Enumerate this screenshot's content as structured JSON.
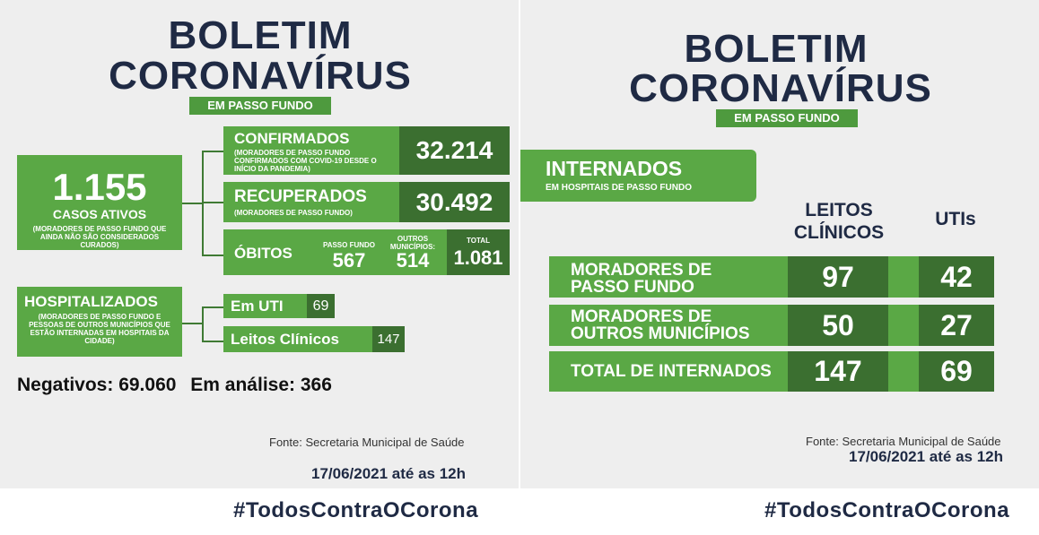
{
  "left": {
    "title_line1": "BOLETIM",
    "title_line2": "CORONAVÍRUS",
    "subtitle": "EM PASSO FUNDO",
    "casos_ativos": {
      "value": "1.155",
      "label": "CASOS ATIVOS",
      "note": "(MORADORES DE PASSO FUNDO QUE AINDA NÃO SÃO CONSIDERADOS CURADOS)"
    },
    "confirmados": {
      "label": "CONFIRMADOS",
      "note": "(MORADORES DE PASSO FUNDO CONFIRMADOS COM COVID-19 DESDE O INÍCIO DA PANDEMIA)",
      "value": "32.214"
    },
    "recuperados": {
      "label": "RECUPERADOS",
      "note": "(MORADORES DE PASSO FUNDO)",
      "value": "30.492"
    },
    "obitos": {
      "label": "ÓBITOS",
      "pf_label": "PASSO FUNDO",
      "pf_value": "567",
      "outros_label": "OUTROS MUNICÍPIOS:",
      "outros_value": "514",
      "total_label": "TOTAL",
      "total_value": "1.081"
    },
    "hospitalizados": {
      "label": "HOSPITALIZADOS",
      "note": "(MORADORES DE PASSO FUNDO E PESSOAS DE OUTROS MUNICÍPIOS QUE ESTÃO INTERNADAS EM HOSPITAIS DA CIDADE)"
    },
    "em_uti": {
      "label": "Em UTI",
      "value": "69"
    },
    "leitos_clinicos": {
      "label": "Leitos Clínicos",
      "value": "147"
    },
    "negativos_label": "Negativos:",
    "negativos_value": "69.060",
    "analise_label": "Em análise:",
    "analise_value": "366",
    "fonte": "Fonte: Secretaria Municipal de Saúde",
    "date": "17/06/2021 até as 12h",
    "hashtag": "#TodosContraOCorona"
  },
  "right": {
    "title_line1": "BOLETIM",
    "title_line2": "CORONAVÍRUS",
    "subtitle": "EM PASSO FUNDO",
    "internados_label": "INTERNADOS",
    "internados_sub": "EM HOSPITAIS DE PASSO FUNDO",
    "col_leitos_1": "LEITOS",
    "col_leitos_2": "CLÍNICOS",
    "col_utis": "UTIs",
    "rows": [
      {
        "label1": "MORADORES DE",
        "label2": "PASSO FUNDO",
        "leitos": "97",
        "utis": "42"
      },
      {
        "label1": "MORADORES DE",
        "label2": "OUTROS MUNICÍPIOS",
        "leitos": "50",
        "utis": "27"
      },
      {
        "label1": "TOTAL DE INTERNADOS",
        "label2": "",
        "leitos": "147",
        "utis": "69"
      }
    ],
    "fonte": "Fonte: Secretaria Municipal de Saúde",
    "date": "17/06/2021 até as 12h",
    "hashtag": "#TodosContraOCorona"
  }
}
